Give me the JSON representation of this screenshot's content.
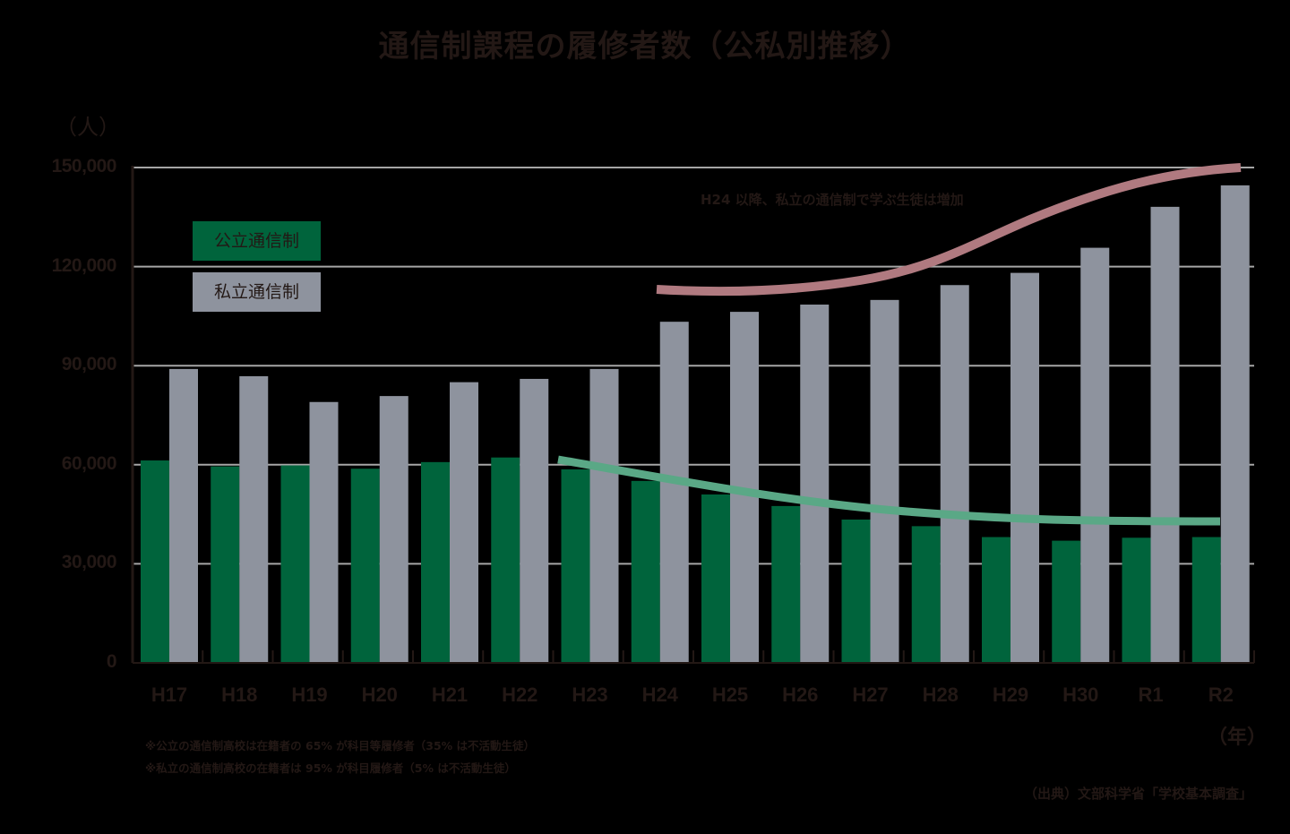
{
  "chart_data": {
    "type": "bar",
    "title": "通信制課程の履修者数（公私別推移）",
    "ylabel": "（人）",
    "xlabel": "（年）",
    "ylim": [
      0,
      150000
    ],
    "yticks": [
      0,
      30000,
      60000,
      90000,
      120000,
      150000
    ],
    "ytick_labels": [
      "0",
      "30,000",
      "60,000",
      "90,000",
      "120,000",
      "150,000"
    ],
    "grid": true,
    "legend_position": "upper-left",
    "categories": [
      "H17",
      "H18",
      "H19",
      "H20",
      "H21",
      "H22",
      "H23",
      "H24",
      "H25",
      "H26",
      "H27",
      "H28",
      "H29",
      "H30",
      "R1",
      "R2"
    ],
    "series": [
      {
        "name": "公立通信制",
        "color": "#00643C",
        "values": [
          61300,
          59500,
          59800,
          58800,
          60800,
          62200,
          58600,
          55100,
          51000,
          47500,
          43400,
          41400,
          38100,
          37000,
          37900,
          38100
        ]
      },
      {
        "name": "私立通信制",
        "color": "#8E939E",
        "values": [
          89000,
          86800,
          79000,
          80800,
          85000,
          86000,
          89000,
          103300,
          106300,
          108500,
          109900,
          114400,
          118100,
          125700,
          138100,
          144600
        ]
      }
    ],
    "trend_lines": [
      {
        "name": "公立 trend",
        "color": "#5AA886",
        "from": "H23",
        "to": "R2",
        "direction": "decreasing"
      },
      {
        "name": "私立 trend",
        "color": "#B07A80",
        "from": "H24",
        "to": "R2",
        "direction": "increasing"
      }
    ],
    "annotations": [
      "H24 以降、私立の通信制で学ぶ生徒は増加"
    ]
  },
  "title": "通信制課程の履修者数（公私別推移）",
  "y_unit": "（人）",
  "x_unit": "（年）",
  "legend": {
    "public": "公立通信制",
    "private": "私立通信制"
  },
  "annotation": "H24 以降、私立の通信制で学ぶ生徒は増加",
  "notes": [
    "※公立の通信制高校は在籍者の 65% が科目等履修者（35% は不活動生徒）",
    "※私立の通信制高校の在籍者は 95% が科目履修者（5% は不活動生徒）"
  ],
  "source": "（出典）文部科学省「学校基本調査」"
}
